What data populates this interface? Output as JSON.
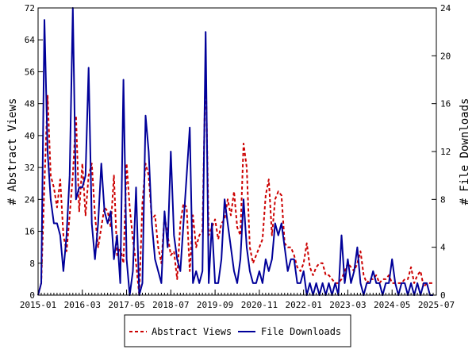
{
  "chart_data": {
    "type": "line",
    "x_ticks": [
      "2015-01",
      "2016-03",
      "2017-05",
      "2018-07",
      "2019-09",
      "2020-11",
      "2022-01",
      "2023-03",
      "2024-05",
      "2025-07"
    ],
    "x_range": [
      "2015-01",
      "2025-07"
    ],
    "y_left": {
      "label": "# Abstract Views",
      "ticks": [
        "0",
        "8",
        "16",
        "24",
        "32",
        "40",
        "48",
        "56",
        "64",
        "72"
      ],
      "range": [
        0,
        72
      ]
    },
    "y_right": {
      "label": "# File Downloads",
      "ticks": [
        "0",
        "4",
        "8",
        "12",
        "16",
        "20",
        "24"
      ],
      "range": [
        0,
        24
      ]
    },
    "grid": false,
    "legend_position": "bottom",
    "series": [
      {
        "name": "Abstract Views",
        "axis": "left",
        "color": "#cc0000",
        "style": "dashed",
        "points": [
          [
            "2015-01",
            0
          ],
          [
            "2015-02",
            3
          ],
          [
            "2015-03",
            28
          ],
          [
            "2015-04",
            50
          ],
          [
            "2015-05",
            30
          ],
          [
            "2015-06",
            27
          ],
          [
            "2015-07",
            22
          ],
          [
            "2015-08",
            29
          ],
          [
            "2015-09",
            15
          ],
          [
            "2015-10",
            11
          ],
          [
            "2015-11",
            20
          ],
          [
            "2015-12",
            30
          ],
          [
            "2016-01",
            45
          ],
          [
            "2016-02",
            21
          ],
          [
            "2016-03",
            33
          ],
          [
            "2016-04",
            20
          ],
          [
            "2016-05",
            30
          ],
          [
            "2016-06",
            33
          ],
          [
            "2016-07",
            20
          ],
          [
            "2016-08",
            12
          ],
          [
            "2016-09",
            17
          ],
          [
            "2016-10",
            22
          ],
          [
            "2016-11",
            21
          ],
          [
            "2016-12",
            17
          ],
          [
            "2017-01",
            30
          ],
          [
            "2017-02",
            10
          ],
          [
            "2017-03",
            12
          ],
          [
            "2017-04",
            8
          ],
          [
            "2017-05",
            33
          ],
          [
            "2017-06",
            22
          ],
          [
            "2017-07",
            14
          ],
          [
            "2017-08",
            8
          ],
          [
            "2017-09",
            0
          ],
          [
            "2017-10",
            23
          ],
          [
            "2017-11",
            33
          ],
          [
            "2017-12",
            30
          ],
          [
            "2018-01",
            19
          ],
          [
            "2018-02",
            20
          ],
          [
            "2018-03",
            12
          ],
          [
            "2018-04",
            8
          ],
          [
            "2018-05",
            20
          ],
          [
            "2018-06",
            15
          ],
          [
            "2018-07",
            10
          ],
          [
            "2018-08",
            11
          ],
          [
            "2018-09",
            4
          ],
          [
            "2018-10",
            18
          ],
          [
            "2018-11",
            23
          ],
          [
            "2018-12",
            22
          ],
          [
            "2019-01",
            6
          ],
          [
            "2019-02",
            20
          ],
          [
            "2019-03",
            12
          ],
          [
            "2019-04",
            15
          ],
          [
            "2019-05",
            16
          ],
          [
            "2019-06",
            58
          ],
          [
            "2019-07",
            15
          ],
          [
            "2019-08",
            17
          ],
          [
            "2019-09",
            19
          ],
          [
            "2019-10",
            14
          ],
          [
            "2019-11",
            18
          ],
          [
            "2019-12",
            19
          ],
          [
            "2020-01",
            24
          ],
          [
            "2020-02",
            20
          ],
          [
            "2020-03",
            26
          ],
          [
            "2020-04",
            17
          ],
          [
            "2020-05",
            15
          ],
          [
            "2020-06",
            38
          ],
          [
            "2020-07",
            32
          ],
          [
            "2020-08",
            12
          ],
          [
            "2020-09",
            8
          ],
          [
            "2020-10",
            10
          ],
          [
            "2020-11",
            12
          ],
          [
            "2020-12",
            14
          ],
          [
            "2021-01",
            25
          ],
          [
            "2021-02",
            29
          ],
          [
            "2021-03",
            15
          ],
          [
            "2021-04",
            24
          ],
          [
            "2021-05",
            26
          ],
          [
            "2021-06",
            25
          ],
          [
            "2021-07",
            13
          ],
          [
            "2021-08",
            12
          ],
          [
            "2021-09",
            12
          ],
          [
            "2021-10",
            10
          ],
          [
            "2021-11",
            7
          ],
          [
            "2021-12",
            6
          ],
          [
            "2022-01",
            8
          ],
          [
            "2022-02",
            13
          ],
          [
            "2022-03",
            7
          ],
          [
            "2022-04",
            5
          ],
          [
            "2022-05",
            7
          ],
          [
            "2022-06",
            8
          ],
          [
            "2022-07",
            8
          ],
          [
            "2022-08",
            5
          ],
          [
            "2022-09",
            5
          ],
          [
            "2022-10",
            4
          ],
          [
            "2022-11",
            3
          ],
          [
            "2022-12",
            3
          ],
          [
            "2023-01",
            4
          ],
          [
            "2023-02",
            6
          ],
          [
            "2023-03",
            8
          ],
          [
            "2023-04",
            7
          ],
          [
            "2023-05",
            6
          ],
          [
            "2023-06",
            8
          ],
          [
            "2023-07",
            11
          ],
          [
            "2023-08",
            5
          ],
          [
            "2023-09",
            3
          ],
          [
            "2023-10",
            4
          ],
          [
            "2023-11",
            4
          ],
          [
            "2023-12",
            5
          ],
          [
            "2024-01",
            3
          ],
          [
            "2024-02",
            4
          ],
          [
            "2024-03",
            4
          ],
          [
            "2024-04",
            5
          ],
          [
            "2024-05",
            3
          ],
          [
            "2024-06",
            3
          ],
          [
            "2024-07",
            3
          ],
          [
            "2024-08",
            3
          ],
          [
            "2024-09",
            4
          ],
          [
            "2024-10",
            4
          ],
          [
            "2024-11",
            7
          ],
          [
            "2024-12",
            3
          ],
          [
            "2025-01",
            5
          ],
          [
            "2025-02",
            6
          ],
          [
            "2025-03",
            2
          ],
          [
            "2025-04",
            3
          ],
          [
            "2025-05",
            3
          ],
          [
            "2025-06",
            3
          ]
        ]
      },
      {
        "name": "File Downloads",
        "axis": "right",
        "color": "#000099",
        "style": "solid",
        "points": [
          [
            "2015-01",
            0
          ],
          [
            "2015-02",
            1
          ],
          [
            "2015-03",
            23
          ],
          [
            "2015-04",
            12
          ],
          [
            "2015-05",
            8
          ],
          [
            "2015-06",
            6
          ],
          [
            "2015-07",
            6
          ],
          [
            "2015-08",
            5
          ],
          [
            "2015-09",
            2
          ],
          [
            "2015-10",
            5
          ],
          [
            "2015-11",
            10
          ],
          [
            "2015-12",
            24
          ],
          [
            "2016-01",
            8
          ],
          [
            "2016-02",
            9
          ],
          [
            "2016-03",
            9
          ],
          [
            "2016-04",
            10
          ],
          [
            "2016-05",
            19
          ],
          [
            "2016-06",
            6
          ],
          [
            "2016-07",
            3
          ],
          [
            "2016-08",
            6
          ],
          [
            "2016-09",
            11
          ],
          [
            "2016-10",
            7
          ],
          [
            "2016-11",
            6
          ],
          [
            "2016-12",
            7
          ],
          [
            "2017-01",
            3
          ],
          [
            "2017-02",
            5
          ],
          [
            "2017-03",
            1
          ],
          [
            "2017-04",
            18
          ],
          [
            "2017-05",
            3
          ],
          [
            "2017-06",
            0
          ],
          [
            "2017-07",
            2
          ],
          [
            "2017-08",
            9
          ],
          [
            "2017-09",
            0
          ],
          [
            "2017-10",
            1
          ],
          [
            "2017-11",
            15
          ],
          [
            "2017-12",
            12
          ],
          [
            "2018-01",
            6
          ],
          [
            "2018-02",
            3
          ],
          [
            "2018-03",
            2
          ],
          [
            "2018-04",
            1
          ],
          [
            "2018-05",
            7
          ],
          [
            "2018-06",
            4
          ],
          [
            "2018-07",
            12
          ],
          [
            "2018-08",
            5
          ],
          [
            "2018-09",
            3
          ],
          [
            "2018-10",
            2
          ],
          [
            "2018-11",
            6
          ],
          [
            "2018-12",
            10
          ],
          [
            "2019-01",
            14
          ],
          [
            "2019-02",
            1
          ],
          [
            "2019-03",
            2
          ],
          [
            "2019-04",
            1
          ],
          [
            "2019-05",
            2
          ],
          [
            "2019-06",
            22
          ],
          [
            "2019-07",
            1
          ],
          [
            "2019-08",
            6
          ],
          [
            "2019-09",
            1
          ],
          [
            "2019-10",
            1
          ],
          [
            "2019-11",
            3
          ],
          [
            "2019-12",
            8
          ],
          [
            "2020-01",
            6
          ],
          [
            "2020-02",
            4
          ],
          [
            "2020-03",
            2
          ],
          [
            "2020-04",
            1
          ],
          [
            "2020-05",
            3
          ],
          [
            "2020-06",
            8
          ],
          [
            "2020-07",
            4
          ],
          [
            "2020-08",
            2
          ],
          [
            "2020-09",
            1
          ],
          [
            "2020-10",
            1
          ],
          [
            "2020-11",
            2
          ],
          [
            "2020-12",
            1
          ],
          [
            "2021-01",
            3
          ],
          [
            "2021-02",
            2
          ],
          [
            "2021-03",
            3
          ],
          [
            "2021-04",
            6
          ],
          [
            "2021-05",
            5
          ],
          [
            "2021-06",
            6
          ],
          [
            "2021-07",
            4
          ],
          [
            "2021-08",
            2
          ],
          [
            "2021-09",
            3
          ],
          [
            "2021-10",
            3
          ],
          [
            "2021-11",
            1
          ],
          [
            "2021-12",
            1
          ],
          [
            "2022-01",
            2
          ],
          [
            "2022-02",
            0
          ],
          [
            "2022-03",
            1
          ],
          [
            "2022-04",
            0
          ],
          [
            "2022-05",
            1
          ],
          [
            "2022-06",
            0
          ],
          [
            "2022-07",
            1
          ],
          [
            "2022-08",
            0
          ],
          [
            "2022-09",
            1
          ],
          [
            "2022-10",
            0
          ],
          [
            "2022-11",
            1
          ],
          [
            "2022-12",
            0
          ],
          [
            "2023-01",
            5
          ],
          [
            "2023-02",
            1
          ],
          [
            "2023-03",
            3
          ],
          [
            "2023-04",
            1
          ],
          [
            "2023-05",
            2
          ],
          [
            "2023-06",
            4
          ],
          [
            "2023-07",
            1
          ],
          [
            "2023-08",
            0
          ],
          [
            "2023-09",
            1
          ],
          [
            "2023-10",
            1
          ],
          [
            "2023-11",
            2
          ],
          [
            "2023-12",
            1
          ],
          [
            "2024-01",
            1
          ],
          [
            "2024-02",
            0
          ],
          [
            "2024-03",
            1
          ],
          [
            "2024-04",
            1
          ],
          [
            "2024-05",
            3
          ],
          [
            "2024-06",
            1
          ],
          [
            "2024-07",
            0
          ],
          [
            "2024-08",
            1
          ],
          [
            "2024-09",
            1
          ],
          [
            "2024-10",
            0
          ],
          [
            "2024-11",
            1
          ],
          [
            "2024-12",
            0
          ],
          [
            "2025-01",
            1
          ],
          [
            "2025-02",
            0
          ],
          [
            "2025-03",
            1
          ],
          [
            "2025-04",
            1
          ],
          [
            "2025-05",
            0
          ],
          [
            "2025-06",
            0
          ]
        ]
      }
    ]
  }
}
